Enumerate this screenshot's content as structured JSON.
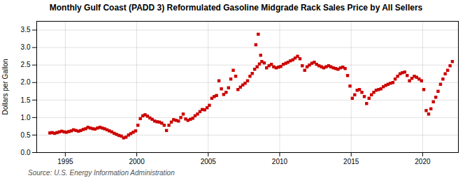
{
  "chart_data": {
    "type": "scatter",
    "title": "Monthly Gulf Coast (PADD 3) Reformulated Gasoline Midgrade Rack Sales Price by All Sellers",
    "ylabel": "Dollars per Gallon",
    "source": "Source: U.S. Energy Information Administration",
    "color": "#cc0000",
    "marker": "square",
    "grid": true,
    "xlim": [
      1993.0,
      2022.5
    ],
    "ylim": [
      0.0,
      3.75
    ],
    "xticks": [
      1995,
      2000,
      2005,
      2010,
      2015,
      2020
    ],
    "yticks": [
      {
        "value": 0.0,
        "label": "0.0"
      },
      0.5,
      {
        "value": 1.0,
        "label": "1.0"
      },
      1.5,
      {
        "value": 2.0,
        "label": "2.0"
      },
      2.5,
      {
        "value": 3.0,
        "label": "3.0"
      },
      3.5
    ],
    "x": [
      1993.92,
      1994.08,
      1994.25,
      1994.42,
      1994.58,
      1994.75,
      1994.92,
      1995.08,
      1995.25,
      1995.42,
      1995.58,
      1995.75,
      1995.92,
      1996.08,
      1996.25,
      1996.42,
      1996.58,
      1996.75,
      1996.92,
      1997.08,
      1997.25,
      1997.42,
      1997.58,
      1997.75,
      1997.92,
      1998.08,
      1998.25,
      1998.42,
      1998.58,
      1998.75,
      1998.92,
      1999.08,
      1999.25,
      1999.42,
      1999.58,
      1999.75,
      1999.92,
      2000.08,
      2000.25,
      2000.42,
      2000.58,
      2000.75,
      2000.92,
      2001.08,
      2001.25,
      2001.42,
      2001.58,
      2001.75,
      2001.92,
      2002.08,
      2002.25,
      2002.42,
      2002.58,
      2002.75,
      2002.92,
      2003.08,
      2003.25,
      2003.42,
      2003.58,
      2003.75,
      2003.92,
      2004.08,
      2004.25,
      2004.42,
      2004.58,
      2004.75,
      2004.92,
      2005.08,
      2005.25,
      2005.42,
      2005.58,
      2005.75,
      2005.92,
      2006.08,
      2006.25,
      2006.42,
      2006.58,
      2006.75,
      2006.92,
      2007.08,
      2007.25,
      2007.42,
      2007.58,
      2007.75,
      2007.92,
      2008.08,
      2008.25,
      2008.42,
      2008.58,
      2008.75,
      2008.92,
      2009.08,
      2009.25,
      2009.42,
      2009.58,
      2009.75,
      2009.92,
      2010.08,
      2010.25,
      2010.42,
      2010.58,
      2010.75,
      2010.92,
      2011.08,
      2011.25,
      2011.42,
      2011.58,
      2011.75,
      2011.92,
      2012.08,
      2012.25,
      2012.42,
      2012.58,
      2012.75,
      2012.92,
      2013.08,
      2013.25,
      2013.42,
      2013.58,
      2013.75,
      2013.92,
      2014.08,
      2014.25,
      2014.42,
      2014.58,
      2014.75,
      2014.92,
      2015.08,
      2015.25,
      2015.42,
      2015.58,
      2015.75,
      2015.92,
      2016.08,
      2016.25,
      2016.42,
      2016.58,
      2016.75,
      2016.92,
      2017.08,
      2017.25,
      2017.42,
      2017.58,
      2017.75,
      2017.92,
      2018.08,
      2018.25,
      2018.42,
      2018.58,
      2018.75,
      2018.92,
      2019.08,
      2019.25,
      2019.42,
      2019.58,
      2019.75,
      2019.92,
      2020.08,
      2020.25,
      2020.42,
      2020.58,
      2020.75,
      2020.92,
      2021.08,
      2021.25,
      2021.42,
      2021.58,
      2021.75,
      2021.92,
      2022.08,
      2008.33,
      2008.5,
      2008.67
    ],
    "values": [
      0.56,
      0.57,
      0.55,
      0.57,
      0.59,
      0.61,
      0.59,
      0.58,
      0.6,
      0.62,
      0.65,
      0.63,
      0.61,
      0.63,
      0.66,
      0.68,
      0.72,
      0.7,
      0.68,
      0.67,
      0.7,
      0.72,
      0.7,
      0.68,
      0.65,
      0.62,
      0.59,
      0.55,
      0.52,
      0.49,
      0.47,
      0.42,
      0.44,
      0.5,
      0.54,
      0.58,
      0.62,
      0.78,
      0.97,
      1.05,
      1.08,
      1.04,
      0.99,
      0.95,
      0.9,
      0.88,
      0.87,
      0.84,
      0.78,
      0.63,
      0.78,
      0.87,
      0.94,
      0.92,
      0.9,
      1.0,
      1.1,
      0.96,
      0.92,
      0.95,
      0.98,
      1.05,
      1.1,
      1.17,
      1.23,
      1.22,
      1.28,
      1.35,
      1.55,
      1.6,
      1.63,
      2.05,
      1.82,
      1.66,
      1.72,
      1.85,
      2.1,
      2.35,
      2.18,
      1.8,
      1.87,
      1.93,
      1.98,
      2.05,
      2.18,
      2.26,
      2.38,
      2.45,
      2.53,
      2.6,
      2.56,
      2.42,
      2.48,
      2.52,
      2.45,
      2.42,
      2.44,
      2.46,
      2.52,
      2.55,
      2.58,
      2.62,
      2.65,
      2.7,
      2.75,
      2.68,
      2.48,
      2.35,
      2.45,
      2.5,
      2.55,
      2.58,
      2.52,
      2.48,
      2.45,
      2.42,
      2.45,
      2.48,
      2.45,
      2.42,
      2.4,
      2.38,
      2.42,
      2.44,
      2.4,
      2.2,
      1.9,
      1.55,
      1.65,
      1.78,
      1.8,
      1.72,
      1.6,
      1.4,
      1.55,
      1.65,
      1.72,
      1.78,
      1.8,
      1.82,
      1.88,
      1.92,
      1.95,
      1.98,
      2.0,
      2.1,
      2.18,
      2.25,
      2.28,
      2.3,
      2.2,
      2.05,
      2.12,
      2.18,
      2.15,
      2.1,
      2.05,
      1.8,
      1.2,
      1.1,
      1.25,
      1.45,
      1.58,
      1.75,
      1.95,
      2.1,
      2.25,
      2.35,
      2.48,
      2.6,
      3.08,
      3.38,
      2.78
    ]
  }
}
